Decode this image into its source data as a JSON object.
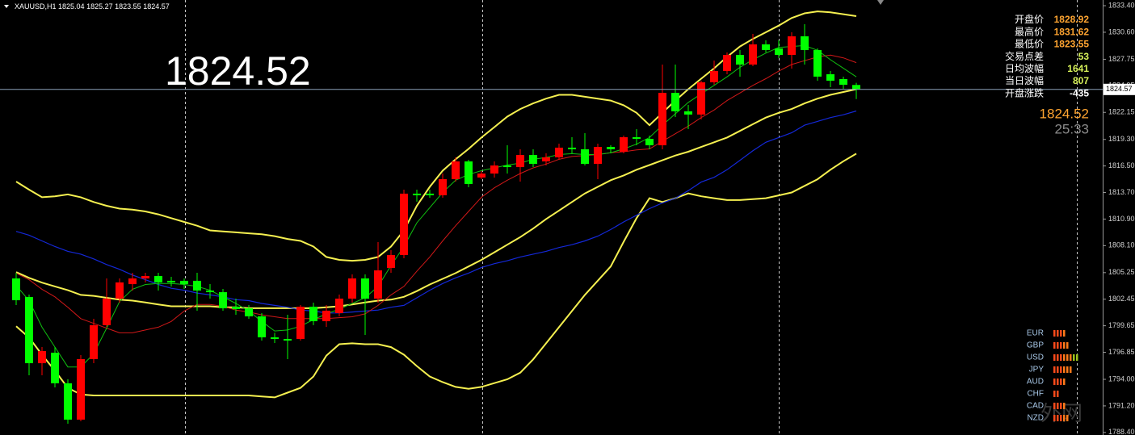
{
  "chart_data": {
    "type": "candlestick",
    "symbol": "XAUUSD,H1",
    "open": [
      1804.64,
      1802.68,
      1795.7,
      1796.81,
      1793.58,
      1789.75,
      1796.13,
      1799.71,
      1802.51,
      1804.04,
      1804.64,
      1804.9,
      1804.39,
      1804.39,
      1804.39,
      1803.36,
      1803.19,
      1801.66,
      1801.49,
      1800.64,
      1798.43,
      1798.26,
      1798.26,
      1801.66,
      1800.13,
      1800.98,
      1802.51,
      1804.64,
      1802.51,
      1805.75,
      1807.11,
      1813.58,
      1813.58,
      1813.41,
      1815.11,
      1816.98,
      1815.28,
      1815.7,
      1816.55,
      1816.38,
      1817.66,
      1816.98,
      1817.41,
      1818.43,
      1818.26,
      1816.72,
      1818.51,
      1818.0,
      1819.53,
      1819.36,
      1818.68,
      1824.21,
      1822.26,
      1821.92,
      1825.32,
      1826.51,
      1828.21,
      1827.19,
      1829.32,
      1828.89,
      1828.21,
      1830.17,
      1828.72,
      1826.17,
      1825.66,
      1825.04
    ],
    "high": [
      1805.24,
      1802.94,
      1797.41,
      1797.41,
      1794.0,
      1796.56,
      1800.39,
      1804.64,
      1804.64,
      1805.24,
      1805.24,
      1805.24,
      1804.81,
      1804.64,
      1805.24,
      1804.04,
      1803.53,
      1802.51,
      1801.83,
      1800.98,
      1798.91,
      1800.81,
      1801.83,
      1802.09,
      1801.83,
      1802.94,
      1805.07,
      1805.07,
      1808.47,
      1807.62,
      1814.0,
      1814.0,
      1814.0,
      1815.7,
      1817.41,
      1817.15,
      1815.96,
      1816.98,
      1818.68,
      1818.26,
      1818.26,
      1817.83,
      1818.85,
      1819.53,
      1819.96,
      1818.85,
      1818.68,
      1819.7,
      1820.38,
      1819.7,
      1827.19,
      1827.19,
      1822.94,
      1825.49,
      1827.62,
      1828.47,
      1828.72,
      1830.43,
      1829.75,
      1829.75,
      1830.6,
      1831.45,
      1828.89,
      1826.51,
      1825.92,
      1825.27
    ],
    "low": [
      1801.83,
      1794.43,
      1794.43,
      1793.15,
      1789.32,
      1789.58,
      1795.7,
      1799.53,
      1802.09,
      1803.36,
      1804.22,
      1803.36,
      1803.79,
      1803.53,
      1801.24,
      1802.51,
      1801.24,
      1800.81,
      1800.39,
      1798.09,
      1797.83,
      1796.13,
      1798.09,
      1799.71,
      1799.53,
      1800.64,
      1802.09,
      1798.68,
      1802.09,
      1805.24,
      1806.77,
      1812.73,
      1813.15,
      1813.15,
      1814.85,
      1814.26,
      1815.11,
      1815.28,
      1815.7,
      1814.85,
      1816.38,
      1816.55,
      1817.15,
      1817.83,
      1816.55,
      1815.11,
      1817.83,
      1817.83,
      1818.68,
      1818.26,
      1818.26,
      1821.66,
      1820.38,
      1821.41,
      1825.06,
      1826.17,
      1825.92,
      1827.02,
      1828.47,
      1827.87,
      1826.77,
      1827.19,
      1825.49,
      1824.81,
      1824.64,
      1823.55
    ],
    "close": [
      1802.34,
      1795.7,
      1796.98,
      1793.58,
      1789.75,
      1796.13,
      1799.71,
      1802.51,
      1804.22,
      1804.64,
      1804.9,
      1804.22,
      1804.22,
      1804.04,
      1803.36,
      1803.19,
      1801.49,
      1801.41,
      1800.64,
      1798.43,
      1798.26,
      1798.09,
      1801.66,
      1800.13,
      1801.24,
      1802.51,
      1804.64,
      1802.51,
      1805.49,
      1807.11,
      1813.58,
      1813.41,
      1813.41,
      1815.11,
      1816.98,
      1814.6,
      1815.7,
      1816.55,
      1816.38,
      1817.66,
      1816.72,
      1817.41,
      1818.43,
      1818.26,
      1816.72,
      1818.51,
      1818.26,
      1819.53,
      1819.36,
      1818.68,
      1824.21,
      1822.26,
      1821.92,
      1825.32,
      1826.51,
      1828.21,
      1827.19,
      1829.32,
      1828.72,
      1828.21,
      1830.17,
      1828.72,
      1825.92,
      1825.49,
      1825.06,
      1824.57
    ],
    "up_color": "#ff0000",
    "down_color": "#00ff00",
    "series": [
      {
        "color": "#f5f050",
        "width": 2,
        "values": [
          1814.85,
          1814.0,
          1813.2,
          1813.3,
          1813.5,
          1813.2,
          1812.7,
          1812.3,
          1812.0,
          1811.9,
          1811.7,
          1811.4,
          1811.0,
          1810.6,
          1810.2,
          1809.7,
          1809.6,
          1809.5,
          1809.4,
          1809.3,
          1809.1,
          1808.8,
          1808.6,
          1808.0,
          1806.9,
          1806.6,
          1806.5,
          1806.6,
          1806.9,
          1808.0,
          1809.7,
          1812.3,
          1814.3,
          1816.0,
          1817.2,
          1818.3,
          1819.5,
          1820.6,
          1821.7,
          1822.5,
          1823.1,
          1823.6,
          1824.0,
          1824.0,
          1823.8,
          1823.6,
          1823.4,
          1822.9,
          1822.1,
          1820.8,
          1822.1,
          1823.4,
          1824.6,
          1825.7,
          1826.8,
          1828.0,
          1829.1,
          1829.9,
          1830.6,
          1831.3,
          1832.1,
          1832.6,
          1832.8,
          1832.7,
          1832.5,
          1832.3
        ]
      },
      {
        "color": "#f5f050",
        "width": 2,
        "values": [
          1805.3,
          1804.7,
          1804.2,
          1803.8,
          1803.4,
          1802.9,
          1802.8,
          1802.6,
          1802.4,
          1802.3,
          1802.1,
          1801.9,
          1801.7,
          1801.7,
          1801.7,
          1801.7,
          1801.6,
          1801.6,
          1801.5,
          1801.5,
          1801.5,
          1801.5,
          1801.5,
          1801.5,
          1801.6,
          1801.7,
          1801.9,
          1802.1,
          1802.3,
          1802.4,
          1802.7,
          1803.3,
          1804.0,
          1804.6,
          1805.2,
          1805.9,
          1806.6,
          1807.4,
          1808.2,
          1809.0,
          1809.9,
          1810.9,
          1811.8,
          1812.7,
          1813.6,
          1814.3,
          1815.0,
          1815.5,
          1816.1,
          1816.6,
          1817.1,
          1817.6,
          1818.0,
          1818.5,
          1819.0,
          1819.5,
          1820.2,
          1820.9,
          1821.6,
          1822.1,
          1822.5,
          1823.1,
          1823.6,
          1824.0,
          1824.3,
          1824.6
        ]
      },
      {
        "color": "#f5f050",
        "width": 2,
        "values": [
          1799.6,
          1798.4,
          1796.6,
          1794.9,
          1793.1,
          1792.4,
          1792.3,
          1792.3,
          1792.3,
          1792.3,
          1792.3,
          1792.3,
          1792.3,
          1792.3,
          1792.3,
          1792.3,
          1792.3,
          1792.3,
          1792.3,
          1792.2,
          1792.1,
          1792.6,
          1793.1,
          1794.3,
          1796.5,
          1797.7,
          1797.8,
          1797.7,
          1797.7,
          1797.4,
          1796.6,
          1795.4,
          1794.3,
          1793.7,
          1793.2,
          1793.0,
          1793.2,
          1793.6,
          1794.0,
          1794.7,
          1796.1,
          1797.8,
          1799.5,
          1801.2,
          1802.9,
          1804.4,
          1805.9,
          1808.5,
          1811.0,
          1813.1,
          1812.7,
          1813.1,
          1813.6,
          1813.3,
          1813.1,
          1812.9,
          1812.9,
          1813.0,
          1813.1,
          1813.4,
          1813.7,
          1814.4,
          1815.1,
          1816.1,
          1817.0,
          1817.8
        ]
      },
      {
        "color": "#1428d8",
        "width": 1.2,
        "values": [
          1809.6,
          1809.2,
          1808.6,
          1808.0,
          1807.5,
          1807.2,
          1806.7,
          1806.1,
          1805.6,
          1805.0,
          1804.5,
          1804.0,
          1803.6,
          1803.4,
          1803.1,
          1802.9,
          1802.7,
          1802.4,
          1802.3,
          1802.0,
          1801.8,
          1801.6,
          1801.3,
          1801.2,
          1801.0,
          1801.0,
          1801.1,
          1801.2,
          1801.3,
          1801.6,
          1801.8,
          1802.6,
          1803.4,
          1804.1,
          1804.7,
          1805.2,
          1805.8,
          1806.2,
          1806.5,
          1806.9,
          1807.2,
          1807.5,
          1807.9,
          1808.2,
          1808.6,
          1809.1,
          1809.8,
          1810.6,
          1811.3,
          1812.0,
          1812.6,
          1813.1,
          1813.9,
          1814.8,
          1815.3,
          1816.1,
          1817.1,
          1818.1,
          1819.0,
          1819.5,
          1820.0,
          1820.8,
          1821.2,
          1821.6,
          1821.9,
          1822.3
        ]
      },
      {
        "color": "#d01818",
        "width": 1,
        "values": [
          1805.2,
          1804.5,
          1803.5,
          1802.7,
          1801.6,
          1800.4,
          1799.9,
          1799.4,
          1798.9,
          1798.9,
          1799.2,
          1799.5,
          1800.1,
          1801.2,
          1801.9,
          1801.9,
          1801.7,
          1801.3,
          1801.1,
          1800.8,
          1800.6,
          1800.4,
          1800.4,
          1800.4,
          1800.4,
          1800.5,
          1800.6,
          1800.9,
          1801.8,
          1802.9,
          1803.8,
          1805.4,
          1806.9,
          1808.6,
          1810.2,
          1811.7,
          1813.2,
          1814.2,
          1815.0,
          1815.7,
          1816.3,
          1816.7,
          1817.2,
          1817.5,
          1817.6,
          1817.7,
          1817.9,
          1818.0,
          1818.2,
          1818.3,
          1819.1,
          1819.9,
          1820.7,
          1821.6,
          1822.4,
          1823.4,
          1824.2,
          1825.0,
          1825.7,
          1826.5,
          1827.2,
          1827.6,
          1828.0,
          1828.2,
          1827.9,
          1827.4
        ]
      },
      {
        "color": "#10c010",
        "width": 1,
        "values": [
          1803.9,
          1802.3,
          1799.5,
          1797.4,
          1795.3,
          1795.3,
          1796.7,
          1799.4,
          1802.2,
          1803.5,
          1804.0,
          1804.1,
          1804.1,
          1804.0,
          1803.8,
          1803.4,
          1802.7,
          1802.0,
          1801.2,
          1800.1,
          1799.1,
          1799.2,
          1799.6,
          1800.3,
          1800.9,
          1801.4,
          1802.0,
          1802.6,
          1803.8,
          1806.0,
          1808.0,
          1810.5,
          1812.1,
          1813.7,
          1815.0,
          1815.6,
          1816.0,
          1816.3,
          1816.6,
          1816.8,
          1817.2,
          1817.4,
          1817.7,
          1817.8,
          1817.7,
          1817.7,
          1817.9,
          1818.3,
          1818.8,
          1819.5,
          1820.8,
          1822.0,
          1823.2,
          1824.1,
          1825.0,
          1825.9,
          1826.9,
          1827.7,
          1828.4,
          1829.0,
          1829.1,
          1829.2,
          1828.7,
          1827.7,
          1826.8,
          1825.9
        ]
      }
    ],
    "ylim": [
      1788.13,
      1834.0
    ],
    "yticks": [
      {
        "value": 1833.4,
        "label": "1833.40"
      },
      {
        "value": 1830.6,
        "label": "1830.60"
      },
      {
        "value": 1827.75,
        "label": "1827.75"
      },
      {
        "value": 1824.95,
        "label": "1824.95"
      },
      {
        "value": 1822.15,
        "label": "1822.15"
      },
      {
        "value": 1819.3,
        "label": "1819.30"
      },
      {
        "value": 1816.5,
        "label": "1816.50"
      },
      {
        "value": 1813.7,
        "label": "1813.70"
      },
      {
        "value": 1810.9,
        "label": "1810.90"
      },
      {
        "value": 1808.1,
        "label": "1808.10"
      },
      {
        "value": 1805.25,
        "label": "1805.25"
      },
      {
        "value": 1802.45,
        "label": "1802.45"
      },
      {
        "value": 1799.65,
        "label": "1799.65"
      },
      {
        "value": 1796.85,
        "label": "1796.85"
      },
      {
        "value": 1794.0,
        "label": "1794.00"
      },
      {
        "value": 1791.2,
        "label": "1791.20"
      },
      {
        "value": 1788.4,
        "label": "1788.40"
      }
    ],
    "grid": false
  },
  "info_panel": {
    "rows": [
      {
        "label": "开盘价",
        "value": 1828.92
      },
      {
        "label": "最高价",
        "value": 1831.62
      },
      {
        "label": "最低价",
        "value": 1823.55
      },
      {
        "label": "交易点差",
        "value": 53
      },
      {
        "label": "日均波幅",
        "value": 1641
      },
      {
        "label": "当日波幅",
        "value": 807
      },
      {
        "label": "开盘涨跌",
        "value": -435
      }
    ],
    "bid": 1824.52,
    "timer": "25:33"
  },
  "currency_strength": {
    "currencies": [
      "EUR",
      "GBP",
      "USD",
      "JPY",
      "AUD",
      "CHF",
      "CAD",
      "NZD"
    ],
    "values": [
      4,
      5,
      8,
      6,
      4,
      2,
      4,
      5
    ]
  },
  "watermark": "外网"
}
